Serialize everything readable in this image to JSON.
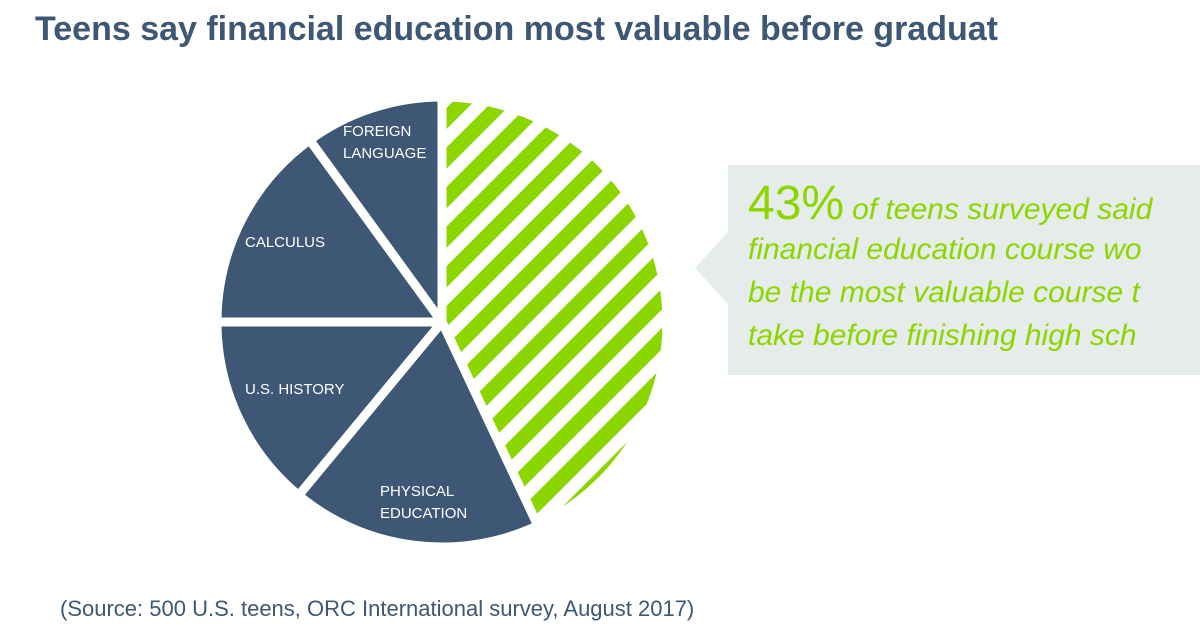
{
  "chart_data": {
    "type": "pie",
    "title": "Teens say financial education most valuable before graduat",
    "categories": [
      null,
      "PHYSICAL EDUCATION",
      "U.S. HISTORY",
      "CALCULUS",
      "FOREIGN LANGUAGE"
    ],
    "values": [
      43,
      18,
      14,
      15,
      10
    ],
    "value_labels": [
      "43%",
      null,
      null,
      null,
      null
    ],
    "colors": [
      "#8cd600",
      "#3d5775",
      "#3d5775",
      "#3d5775",
      "#3d5775"
    ],
    "annotation": [
      "of teens surveyed said",
      "financial education course wo",
      "be the most valuable course t",
      "take before finishing high sch"
    ],
    "source": "(Source: 500 U.S. teens, ORC International survey, August 2017)"
  }
}
